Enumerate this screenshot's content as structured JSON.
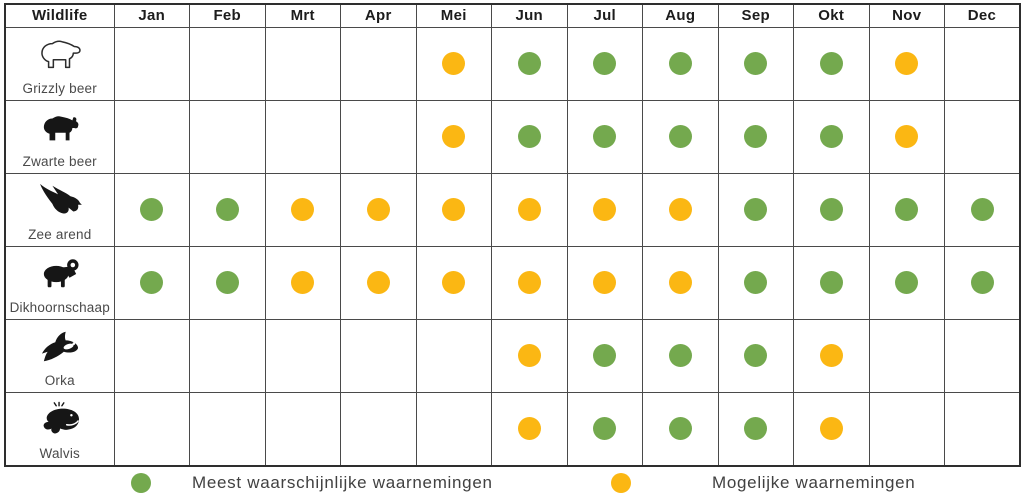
{
  "chart_data": {
    "type": "table",
    "title": "Wildlife",
    "columns": [
      "Jan",
      "Feb",
      "Mrt",
      "Apr",
      "Mei",
      "Jun",
      "Jul",
      "Aug",
      "Sep",
      "Okt",
      "Nov",
      "Dec"
    ],
    "rows": [
      {
        "animal": "Grizzly beer",
        "icon": "grizzly-bear-icon",
        "sightings": [
          null,
          null,
          null,
          null,
          "possible",
          "likely",
          "likely",
          "likely",
          "likely",
          "likely",
          "possible",
          null
        ]
      },
      {
        "animal": "Zwarte beer",
        "icon": "black-bear-icon",
        "sightings": [
          null,
          null,
          null,
          null,
          "possible",
          "likely",
          "likely",
          "likely",
          "likely",
          "likely",
          "possible",
          null
        ]
      },
      {
        "animal": "Zee arend",
        "icon": "sea-eagle-icon",
        "sightings": [
          "likely",
          "likely",
          "possible",
          "possible",
          "possible",
          "possible",
          "possible",
          "possible",
          "likely",
          "likely",
          "likely",
          "likely"
        ]
      },
      {
        "animal": "Dikhoornschaap",
        "icon": "bighorn-sheep-icon",
        "sightings": [
          "likely",
          "likely",
          "possible",
          "possible",
          "possible",
          "possible",
          "possible",
          "possible",
          "likely",
          "likely",
          "likely",
          "likely"
        ]
      },
      {
        "animal": "Orka",
        "icon": "orca-icon",
        "sightings": [
          null,
          null,
          null,
          null,
          null,
          "possible",
          "likely",
          "likely",
          "likely",
          "possible",
          null,
          null
        ]
      },
      {
        "animal": "Walvis",
        "icon": "whale-icon",
        "sightings": [
          null,
          null,
          null,
          null,
          null,
          "possible",
          "likely",
          "likely",
          "likely",
          "possible",
          null,
          null
        ]
      }
    ],
    "legend": [
      {
        "key": "likely",
        "label": "Meest waarschijnlijke waarnemingen"
      },
      {
        "key": "possible",
        "label": "Mogelijke waarnemingen"
      }
    ],
    "layout": {
      "grid": true,
      "legend_position": "bottom"
    }
  },
  "colors": {
    "likely": "#74a94e",
    "possible": "#fbb713",
    "grid": "#4a4a4a",
    "grid_dark": "#2e2e2e",
    "header_text": "#1c1c1c",
    "label_text": "#4a4a4a",
    "legend_text": "#414141"
  }
}
